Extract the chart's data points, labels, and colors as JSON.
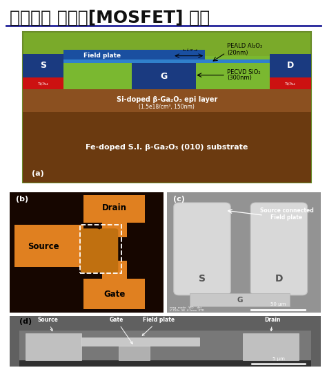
{
  "title": "산화갈륨 모스펫[MOSFET] 구조",
  "title_fontsize": 18,
  "bg_color": "#ffffff",
  "panel_a": {
    "outer_border_color": "#6a8c2a",
    "outer_fill": "#7aaa2a",
    "substrate_color": "#6b3a10",
    "substrate_text": "Fe-doped S.I. β-Ga₂O₃ (010) substrate",
    "epi_color": "#8b5020",
    "epi_text": "Si-doped β-Ga₂O₃ epi layer",
    "epi_subtext": "(1.5e18/cm³, 150nm)",
    "sio2_color": "#7ab830",
    "sio2_text": "PECVD SiO₂",
    "sio2_subtext": "(300nm)",
    "al2o3_text": "PEALD Al₂O₃",
    "al2o3_subtext": "(20nm)",
    "field_plate_color": "#1a4fa0",
    "field_plate_text": "Field plate",
    "gate_color": "#1a3a80",
    "gate_text": "G",
    "ohmic_color": "#cc1111",
    "metal_color": "#1a3a80",
    "s_text": "S",
    "d_text": "D",
    "tiau_text": "Ti/Au",
    "label": "(a)"
  },
  "panel_b_label": "(b)",
  "panel_c_label": "(c)",
  "panel_d_label": "(d)",
  "orange_color": "#e08020",
  "dark_bg": "#180800",
  "gray_bg": "#909090"
}
